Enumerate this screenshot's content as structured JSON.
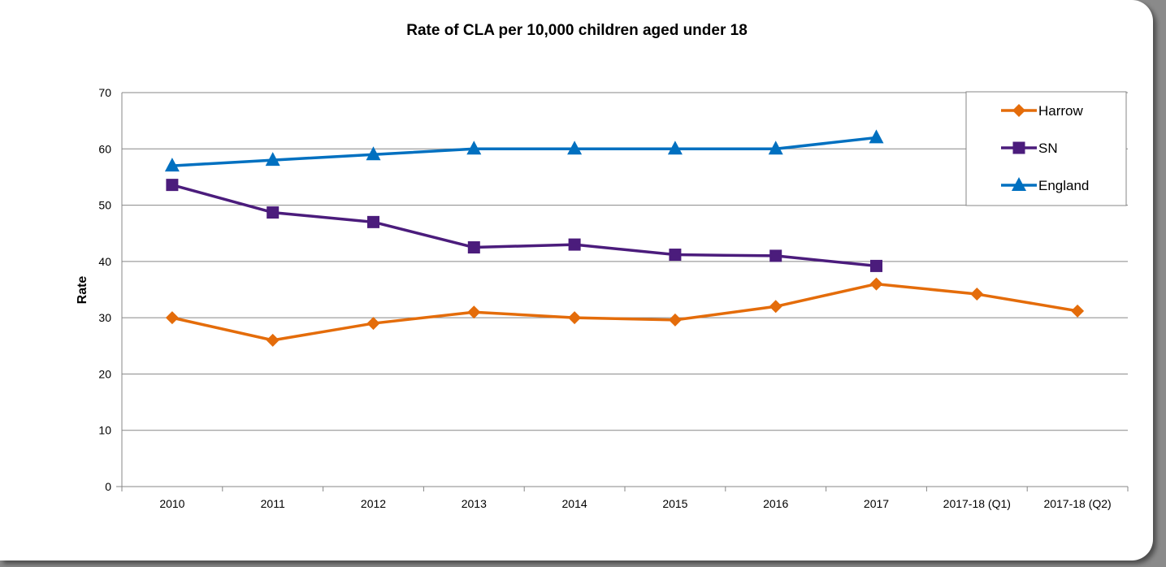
{
  "chart_data": {
    "type": "line",
    "title": "Rate of CLA per 10,000 children aged under 18",
    "xlabel": "",
    "ylabel": "Rate",
    "ylim": [
      0,
      70
    ],
    "yticks": [
      0,
      10,
      20,
      30,
      40,
      50,
      60,
      70
    ],
    "grid": true,
    "legend_position": "top-right",
    "categories": [
      "2010",
      "2011",
      "2012",
      "2013",
      "2014",
      "2015",
      "2016",
      "2017",
      "2017-18 (Q1)",
      "2017-18 (Q2)"
    ],
    "series": [
      {
        "name": "Harrow",
        "color": "#e46c0a",
        "marker": "diamond",
        "values": [
          30,
          26,
          29,
          31,
          30,
          29.6,
          32,
          36,
          34.2,
          31.2
        ]
      },
      {
        "name": "SN",
        "color": "#4b1c7c",
        "marker": "square",
        "values": [
          53.6,
          48.7,
          47,
          42.5,
          43,
          41.2,
          41,
          39.2,
          null,
          null
        ]
      },
      {
        "name": "England",
        "color": "#0070c0",
        "marker": "triangle",
        "values": [
          57,
          58,
          59,
          60,
          60,
          60,
          60,
          62,
          null,
          null
        ]
      }
    ]
  }
}
